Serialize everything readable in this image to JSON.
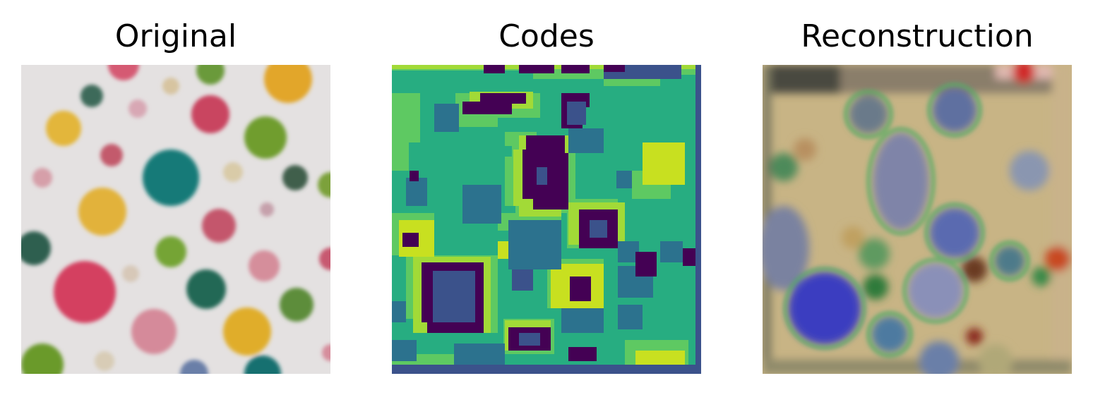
{
  "figure": {
    "panels": [
      {
        "title": "Original"
      },
      {
        "title": "Codes"
      },
      {
        "title": "Reconstruction"
      }
    ]
  }
}
